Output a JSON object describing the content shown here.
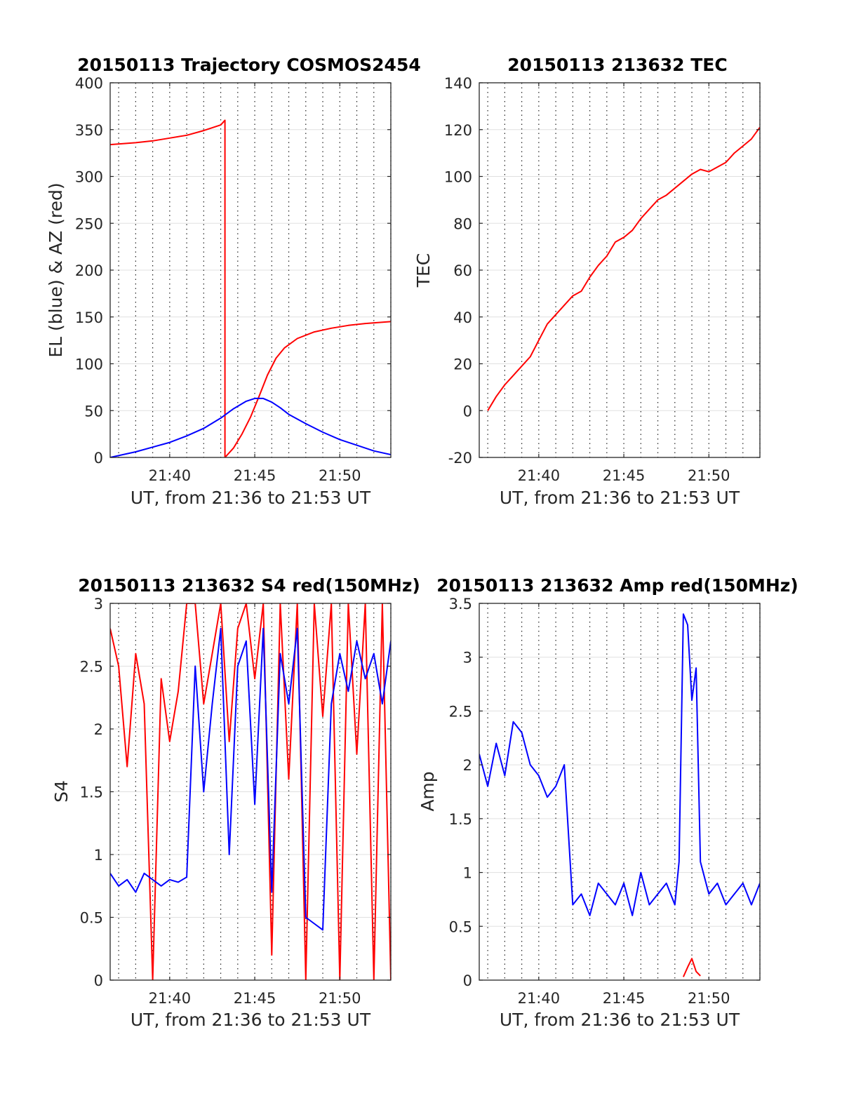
{
  "chart_data": [
    {
      "type": "line",
      "title": "20150113 Trajectory COSMOS2454",
      "xlabel": "UT, from 21:36 to 21:53 UT",
      "ylabel": "EL (blue) & AZ (red)",
      "xlim": [
        "21:36:30",
        "21:53:00"
      ],
      "ylim": [
        0,
        400
      ],
      "xticks": [
        "21:40",
        "21:45",
        "21:50"
      ],
      "yticks": [
        "0",
        "50",
        "100",
        "150",
        "200",
        "250",
        "300",
        "350",
        "400"
      ],
      "grid": "dotted vertical every minute, horizontal at y ticks",
      "series": [
        {
          "color": "#ff0000",
          "x": [
            "21:36:30",
            "21:38:00",
            "21:39:00",
            "21:40:00",
            "21:41:00",
            "21:42:00",
            "21:42:30",
            "21:43:00",
            "21:43:15",
            "21:43:15",
            "21:43:45",
            "21:44:15",
            "21:44:45",
            "21:45:15",
            "21:45:45",
            "21:46:15",
            "21:46:45",
            "21:47:30",
            "21:48:30",
            "21:49:30",
            "21:50:30",
            "21:51:30",
            "21:53:00"
          ],
          "values": [
            334,
            336,
            338,
            341,
            344,
            349,
            352,
            355,
            360,
            0,
            10,
            25,
            43,
            65,
            88,
            106,
            117,
            127,
            134,
            138,
            141,
            143,
            145
          ]
        },
        {
          "color": "#0000ff",
          "x": [
            "21:36:30",
            "21:38:00",
            "21:39:00",
            "21:40:00",
            "21:41:00",
            "21:42:00",
            "21:43:00",
            "21:43:45",
            "21:44:30",
            "21:45:00",
            "21:45:30",
            "21:46:00",
            "21:46:30",
            "21:47:00",
            "21:48:00",
            "21:49:00",
            "21:50:00",
            "21:51:00",
            "21:52:00",
            "21:53:00"
          ],
          "values": [
            0,
            6,
            11,
            16,
            23,
            31,
            42,
            52,
            60,
            63,
            63,
            59,
            53,
            46,
            36,
            27,
            19,
            13,
            7,
            3
          ]
        }
      ]
    },
    {
      "type": "line",
      "title": "20150113 213632 TEC",
      "xlabel": "UT, from 21:36 to 21:53 UT",
      "ylabel": "TEC",
      "xlim": [
        "21:36:30",
        "21:53:00"
      ],
      "ylim": [
        -20,
        140
      ],
      "xticks": [
        "21:40",
        "21:45",
        "21:50"
      ],
      "yticks": [
        "-20",
        "0",
        "20",
        "40",
        "60",
        "80",
        "100",
        "120",
        "140"
      ],
      "grid": "dotted vertical every minute, horizontal at y ticks",
      "series": [
        {
          "color": "#ff0000",
          "x": [
            "21:37:00",
            "21:37:30",
            "21:38:00",
            "21:38:30",
            "21:39:00",
            "21:39:30",
            "21:40:00",
            "21:40:30",
            "21:41:00",
            "21:41:30",
            "21:42:00",
            "21:42:30",
            "21:43:00",
            "21:43:30",
            "21:44:00",
            "21:44:30",
            "21:45:00",
            "21:45:30",
            "21:46:00",
            "21:46:30",
            "21:47:00",
            "21:47:30",
            "21:48:00",
            "21:48:30",
            "21:49:00",
            "21:49:30",
            "21:50:00",
            "21:50:30",
            "21:51:00",
            "21:51:30",
            "21:52:00",
            "21:52:30",
            "21:53:00"
          ],
          "values": [
            0,
            6,
            11,
            15,
            19,
            23,
            30,
            37,
            41,
            45,
            49,
            51,
            57,
            62,
            66,
            72,
            74,
            77,
            82,
            86,
            90,
            92,
            95,
            98,
            101,
            103,
            102,
            104,
            106,
            110,
            113,
            116,
            121
          ]
        }
      ]
    },
    {
      "type": "line",
      "title": "20150113 213632 S4 red(150MHz)",
      "xlabel": "UT, from 21:36 to 21:53 UT",
      "ylabel": "S4",
      "xlim": [
        "21:36:30",
        "21:53:00"
      ],
      "ylim": [
        0,
        3
      ],
      "xticks": [
        "21:40",
        "21:45",
        "21:50"
      ],
      "yticks": [
        "0",
        "0.5",
        "1",
        "1.5",
        "2",
        "2.5",
        "3"
      ],
      "grid": "dotted vertical every minute, horizontal at y ticks",
      "series": [
        {
          "color": "#ff0000",
          "x": [
            "21:36:30",
            "21:37:00",
            "21:37:30",
            "21:38:00",
            "21:38:30",
            "21:39:00",
            "21:39:30",
            "21:40:00",
            "21:40:30",
            "21:41:00",
            "21:41:30",
            "21:42:00",
            "21:42:30",
            "21:43:00",
            "21:43:30",
            "21:44:00",
            "21:44:30",
            "21:45:00",
            "21:45:30",
            "21:46:00",
            "21:46:30",
            "21:47:00",
            "21:47:30",
            "21:48:00",
            "21:48:30",
            "21:49:00",
            "21:49:30",
            "21:50:00",
            "21:50:30",
            "21:51:00",
            "21:51:30",
            "21:52:00",
            "21:52:30",
            "21:53:00"
          ],
          "values": [
            2.8,
            2.5,
            1.7,
            2.6,
            2.2,
            0.0,
            2.4,
            1.9,
            2.3,
            3.0,
            3.0,
            2.2,
            2.6,
            3.0,
            1.9,
            2.8,
            3.0,
            2.4,
            3.0,
            0.2,
            3.0,
            1.6,
            3.0,
            0.0,
            3.0,
            2.1,
            3.0,
            0.0,
            3.0,
            1.8,
            3.0,
            0.0,
            3.0,
            0.0
          ]
        },
        {
          "color": "#0000ff",
          "x": [
            "21:36:30",
            "21:37:00",
            "21:37:30",
            "21:38:00",
            "21:38:30",
            "21:39:00",
            "21:39:30",
            "21:40:00",
            "21:40:30",
            "21:41:00",
            "21:41:30",
            "21:42:00",
            "21:42:30",
            "21:43:00",
            "21:43:30",
            "21:44:00",
            "21:44:30",
            "21:45:00",
            "21:45:30",
            "21:46:00",
            "21:46:30",
            "21:47:00",
            "21:47:30",
            "21:48:00",
            "21:48:30",
            "21:49:00",
            "21:49:30",
            "21:50:00",
            "21:50:30",
            "21:51:00",
            "21:51:30",
            "21:52:00",
            "21:52:30",
            "21:53:00"
          ],
          "values": [
            0.85,
            0.75,
            0.8,
            0.7,
            0.85,
            0.8,
            0.75,
            0.8,
            0.78,
            0.82,
            2.5,
            1.5,
            2.2,
            2.8,
            1.0,
            2.5,
            2.7,
            1.4,
            2.8,
            0.7,
            2.6,
            2.2,
            2.8,
            0.5,
            0.45,
            0.4,
            2.2,
            2.6,
            2.3,
            2.7,
            2.4,
            2.6,
            2.2,
            2.7
          ]
        }
      ]
    },
    {
      "type": "line",
      "title": "20150113 213632 Amp red(150MHz)",
      "xlabel": "UT, from 21:36 to 21:53 UT",
      "ylabel": "Amp",
      "xlim": [
        "21:36:30",
        "21:53:00"
      ],
      "ylim": [
        0,
        3.5
      ],
      "xticks": [
        "21:40",
        "21:45",
        "21:50"
      ],
      "yticks": [
        "0",
        "0.5",
        "1",
        "1.5",
        "2",
        "2.5",
        "3",
        "3.5"
      ],
      "grid": "dotted vertical every minute, horizontal at y ticks",
      "series": [
        {
          "color": "#0000ff",
          "x": [
            "21:36:30",
            "21:37:00",
            "21:37:30",
            "21:38:00",
            "21:38:30",
            "21:39:00",
            "21:39:30",
            "21:40:00",
            "21:40:30",
            "21:41:00",
            "21:41:30",
            "21:42:00",
            "21:42:30",
            "21:43:00",
            "21:43:30",
            "21:44:00",
            "21:44:30",
            "21:45:00",
            "21:45:30",
            "21:46:00",
            "21:46:30",
            "21:47:00",
            "21:47:30",
            "21:48:00",
            "21:48:15",
            "21:48:30",
            "21:48:45",
            "21:49:00",
            "21:49:15",
            "21:49:30",
            "21:50:00",
            "21:50:30",
            "21:51:00",
            "21:51:30",
            "21:52:00",
            "21:52:30",
            "21:53:00"
          ],
          "values": [
            2.1,
            1.8,
            2.2,
            1.9,
            2.4,
            2.3,
            2.0,
            1.9,
            1.7,
            1.8,
            2.0,
            0.7,
            0.8,
            0.6,
            0.9,
            0.8,
            0.7,
            0.9,
            0.6,
            1.0,
            0.7,
            0.8,
            0.9,
            0.7,
            1.1,
            3.4,
            3.3,
            2.6,
            2.9,
            1.1,
            0.8,
            0.9,
            0.7,
            0.8,
            0.9,
            0.7,
            0.9
          ]
        },
        {
          "color": "#ff0000",
          "x": [
            "21:48:30",
            "21:48:45",
            "21:49:00",
            "21:49:15",
            "21:49:30"
          ],
          "values": [
            0.03,
            0.12,
            0.2,
            0.08,
            0.04
          ]
        }
      ]
    }
  ]
}
